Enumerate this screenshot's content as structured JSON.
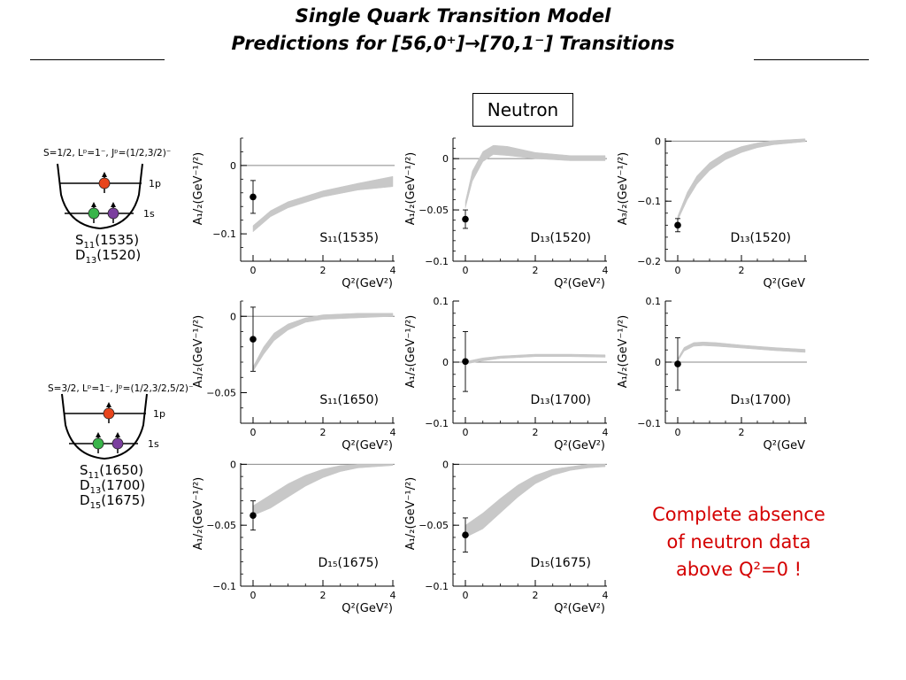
{
  "header": {
    "title_line1": "Single Quark Transition Model",
    "title_line2": "Predictions for [56,0⁺]→[70,1⁻] Transitions"
  },
  "neutron_label": "Neutron",
  "note_lines": [
    "Complete absence",
    "of neutron data",
    "above Q²=0 !"
  ],
  "colors": {
    "band": "#c8c8c8",
    "note": "#d40000",
    "quark_red": "#e8451c",
    "quark_green": "#39b54a",
    "quark_purple": "#7b3f9e"
  },
  "diagrams": [
    {
      "header": "S=1/2, Lᵖ=1⁻, Jᵖ=(1/2,3/2)⁻",
      "level_upper": "1p",
      "level_lower": "1s",
      "states": [
        [
          "S",
          "11",
          "(1535)"
        ],
        [
          "D",
          "13",
          "(1520)"
        ]
      ]
    },
    {
      "header": "S=3/2, Lᵖ=1⁻, Jᵖ=(1/2,3/2,5/2)⁻",
      "level_upper": "1p",
      "level_lower": "1s",
      "states": [
        [
          "S",
          "11",
          "(1650)"
        ],
        [
          "D",
          "13",
          "(1700)"
        ],
        [
          "D",
          "15",
          "(1675)"
        ]
      ]
    }
  ],
  "chart_data": [
    {
      "type": "area",
      "state": "S₁₁(1535)",
      "ylabel": "A₁/₂(GeV⁻¹/²)",
      "xlabel": "Q²(GeV²)",
      "xlim": [
        0,
        4
      ],
      "ylim": [
        -0.14,
        0.04
      ],
      "xticks": [
        0,
        2,
        4
      ],
      "yticks": [
        -0.1,
        0
      ],
      "ytick_labels": [
        "−0.1",
        "0"
      ],
      "band": {
        "x": [
          0,
          0.5,
          1,
          2,
          3,
          4
        ],
        "lower": [
          -0.097,
          -0.075,
          -0.062,
          -0.046,
          -0.036,
          -0.031
        ],
        "upper": [
          -0.088,
          -0.066,
          -0.053,
          -0.037,
          -0.026,
          -0.016
        ]
      },
      "points": [
        {
          "x": 0,
          "y": -0.046,
          "err": 0.024
        }
      ]
    },
    {
      "type": "area",
      "state": "D₁₃(1520)",
      "ylabel": "A₁/₂(GeV⁻¹/²)",
      "xlabel": "Q²(GeV²)",
      "xlim": [
        0,
        4
      ],
      "ylim": [
        -0.1,
        0.02
      ],
      "xticks": [
        0,
        2,
        4
      ],
      "yticks": [
        -0.1,
        -0.05,
        0
      ],
      "ytick_labels": [
        "−0.1",
        "−0.05",
        "0"
      ],
      "band": {
        "x": [
          0,
          0.2,
          0.5,
          0.8,
          1.2,
          2,
          3,
          4
        ],
        "lower": [
          -0.048,
          -0.022,
          -0.003,
          0.004,
          0.003,
          0.0,
          -0.002,
          -0.002
        ],
        "upper": [
          -0.042,
          -0.012,
          0.007,
          0.013,
          0.012,
          0.006,
          0.003,
          0.003
        ]
      },
      "points": [
        {
          "x": 0,
          "y": -0.059,
          "err": 0.009
        }
      ]
    },
    {
      "type": "area",
      "state": "D₁₃(1520)",
      "ylabel": "A₃/₂(GeV⁻¹/²)",
      "xlabel": "Q²(GeV",
      "xlim": [
        0,
        4
      ],
      "ylim": [
        -0.2,
        0.005
      ],
      "xticks": [
        0,
        2
      ],
      "yticks": [
        -0.2,
        -0.1,
        0
      ],
      "ytick_labels": [
        "−0.2",
        "−0.1",
        "0"
      ],
      "band": {
        "x": [
          0,
          0.3,
          0.6,
          1,
          1.5,
          2,
          2.5,
          3,
          4
        ],
        "lower": [
          -0.132,
          -0.098,
          -0.072,
          -0.049,
          -0.031,
          -0.019,
          -0.011,
          -0.006,
          -0.001
        ],
        "upper": [
          -0.125,
          -0.085,
          -0.058,
          -0.036,
          -0.019,
          -0.009,
          -0.003,
          0.001,
          0.004
        ]
      },
      "points": [
        {
          "x": 0,
          "y": -0.14,
          "err": 0.011
        }
      ]
    },
    {
      "type": "area",
      "state": "S₁₁(1650)",
      "ylabel": "A₁/₂(GeV⁻¹/²)",
      "xlabel": "Q²(GeV²)",
      "xlim": [
        0,
        4
      ],
      "ylim": [
        -0.07,
        0.01
      ],
      "xticks": [
        0,
        2,
        4
      ],
      "yticks": [
        -0.05,
        0
      ],
      "ytick_labels": [
        "−0.05",
        "0"
      ],
      "band": {
        "x": [
          0,
          0.3,
          0.6,
          1,
          1.5,
          2,
          3,
          4
        ],
        "lower": [
          -0.036,
          -0.025,
          -0.016,
          -0.009,
          -0.004,
          -0.002,
          -0.001,
          0.0
        ],
        "upper": [
          -0.033,
          -0.02,
          -0.011,
          -0.005,
          -0.001,
          0.001,
          0.002,
          0.002
        ]
      },
      "points": [
        {
          "x": 0,
          "y": -0.015,
          "err": 0.021
        }
      ]
    },
    {
      "type": "area",
      "state": "D₁₃(1700)",
      "ylabel": "A₁/₂(GeV⁻¹/²)",
      "xlabel": "Q²(GeV²)",
      "xlim": [
        0,
        4
      ],
      "ylim": [
        -0.1,
        0.1
      ],
      "xticks": [
        0,
        2,
        4
      ],
      "yticks": [
        -0.1,
        0,
        0.1
      ],
      "ytick_labels": [
        "−0.1",
        "0",
        "0.1"
      ],
      "band": {
        "x": [
          0,
          0.5,
          1,
          2,
          3,
          4
        ],
        "lower": [
          -0.003,
          0.002,
          0.006,
          0.009,
          0.009,
          0.008
        ],
        "upper": [
          0.001,
          0.007,
          0.01,
          0.013,
          0.013,
          0.012
        ]
      },
      "points": [
        {
          "x": 0,
          "y": 0.001,
          "err": 0.049
        }
      ]
    },
    {
      "type": "area",
      "state": "D₁₃(1700)",
      "ylabel": "A₁/₂(GeV⁻¹/²)",
      "xlabel": "Q²(GeV",
      "xlim": [
        0,
        4
      ],
      "ylim": [
        -0.1,
        0.1
      ],
      "xticks": [
        0,
        2
      ],
      "yticks": [
        -0.1,
        0,
        0.1
      ],
      "ytick_labels": [
        "−0.1",
        "0",
        "0.1"
      ],
      "band": {
        "x": [
          0,
          0.2,
          0.5,
          0.8,
          1.2,
          2,
          3,
          4
        ],
        "lower": [
          0.001,
          0.018,
          0.026,
          0.027,
          0.026,
          0.023,
          0.019,
          0.016
        ],
        "upper": [
          0.006,
          0.024,
          0.032,
          0.033,
          0.032,
          0.028,
          0.024,
          0.021
        ]
      },
      "points": [
        {
          "x": 0,
          "y": -0.003,
          "err": 0.043
        }
      ]
    },
    {
      "type": "area",
      "state": "D₁₅(1675)",
      "ylabel": "A₁/₂(GeV⁻¹/²)",
      "xlabel": "Q²(GeV²)",
      "xlim": [
        0,
        4
      ],
      "ylim": [
        -0.1,
        0.001
      ],
      "xticks": [
        0,
        2,
        4
      ],
      "yticks": [
        -0.1,
        -0.05,
        0
      ],
      "ytick_labels": [
        "−0.1",
        "−0.05",
        "0"
      ],
      "band": {
        "x": [
          0,
          0.5,
          1,
          1.5,
          2,
          2.5,
          3,
          3.5,
          4
        ],
        "lower": [
          -0.042,
          -0.036,
          -0.027,
          -0.018,
          -0.011,
          -0.006,
          -0.003,
          -0.002,
          -0.001
        ],
        "upper": [
          -0.034,
          -0.025,
          -0.016,
          -0.009,
          -0.004,
          -0.001,
          0.0,
          0.0,
          0.0
        ]
      },
      "points": [
        {
          "x": 0,
          "y": -0.042,
          "err": 0.012
        }
      ]
    },
    {
      "type": "area",
      "state": "D₁₅(1675)",
      "ylabel": "A₁/₂(GeV⁻¹/²)",
      "xlabel": "Q²(GeV²)",
      "xlim": [
        0,
        4
      ],
      "ylim": [
        -0.1,
        0.001
      ],
      "xticks": [
        0,
        2,
        4
      ],
      "yticks": [
        -0.1,
        -0.05,
        0
      ],
      "ytick_labels": [
        "−0.1",
        "−0.05",
        "0"
      ],
      "band": {
        "x": [
          0,
          0.5,
          1,
          1.5,
          2,
          2.5,
          3,
          3.5,
          4
        ],
        "lower": [
          -0.06,
          -0.053,
          -0.04,
          -0.027,
          -0.016,
          -0.009,
          -0.005,
          -0.003,
          -0.002
        ],
        "upper": [
          -0.05,
          -0.04,
          -0.028,
          -0.017,
          -0.009,
          -0.004,
          -0.002,
          0.0,
          0.0
        ]
      },
      "points": [
        {
          "x": 0,
          "y": -0.058,
          "err": 0.014
        }
      ]
    }
  ]
}
